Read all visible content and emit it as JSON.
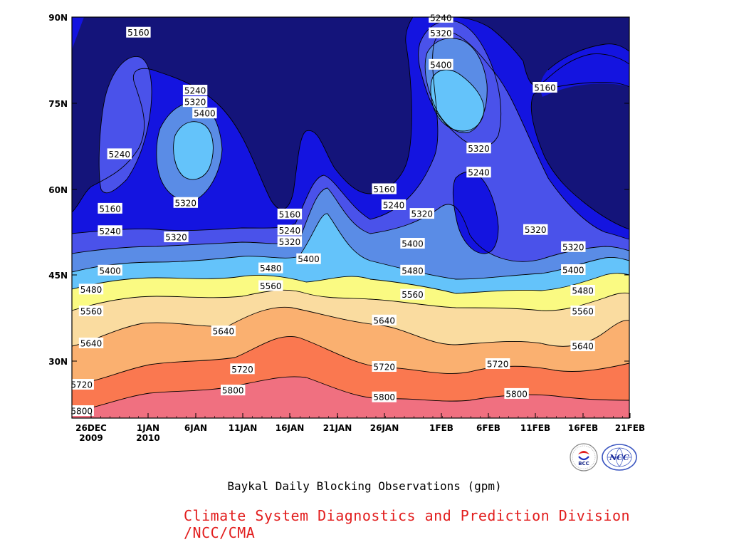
{
  "title": "Baykal Daily Blocking Observations (gpm)",
  "credit": "Climate System Diagnostics and Prediction Division /NCC/CMA",
  "logos": {
    "left_text": "BCC",
    "right_text": "NCC"
  },
  "colors": {
    "lt5160": "#14147a",
    "b5160_5240": "#1414e0",
    "b5240_5320": "#4a52ea",
    "b5320_5400": "#5a8ce6",
    "b5400_5480": "#64c3fa",
    "b5480_5560": "#fafa82",
    "b5560_5640": "#fadca0",
    "b5640_5720": "#fab070",
    "b5720_5800": "#fa7850",
    "gt5800": "#f07080"
  },
  "chart_data": {
    "type": "contour",
    "title": "Baykal Daily Blocking Observations (gpm)",
    "x_ticks": [
      "26DEC",
      "1JAN",
      "6JAN",
      "11JAN",
      "16JAN",
      "21JAN",
      "26JAN",
      "1FEB",
      "6FEB",
      "11FEB",
      "16FEB",
      "21FEB"
    ],
    "x_tick_sublabels": [
      "2009",
      "2010",
      "",
      "",
      "",
      "",
      "",
      "",
      "",
      "",
      "",
      ""
    ],
    "y_ticks": [
      "90N",
      "75N",
      "60N",
      "45N",
      "30N"
    ],
    "y_tick_values": [
      90,
      75,
      60,
      45,
      30
    ],
    "x_range": [
      "2009-12-26",
      "2010-02-21"
    ],
    "y_range": [
      20,
      90
    ],
    "contour_levels": [
      5160,
      5240,
      5320,
      5400,
      5480,
      5560,
      5640,
      5720,
      5800
    ],
    "contour_labels": [
      {
        "text": "5160",
        "date": "2009-12-31",
        "lat": 87.3
      },
      {
        "text": "5240",
        "date": "2010-01-06",
        "lat": 77.2
      },
      {
        "text": "5320",
        "date": "2010-01-06",
        "lat": 75.2
      },
      {
        "text": "5400",
        "date": "2010-01-07",
        "lat": 73.2
      },
      {
        "text": "5240",
        "date": "2009-12-29",
        "lat": 66.1
      },
      {
        "text": "5320",
        "date": "2010-01-05",
        "lat": 57.6
      },
      {
        "text": "5160",
        "date": "2009-12-28",
        "lat": 56.6
      },
      {
        "text": "5240",
        "date": "2009-12-28",
        "lat": 52.7
      },
      {
        "text": "5320",
        "date": "2010-01-04",
        "lat": 51.6
      },
      {
        "text": "5400",
        "date": "2009-12-28",
        "lat": 45.8
      },
      {
        "text": "5480",
        "date": "2009-12-26",
        "lat": 42.5
      },
      {
        "text": "5560",
        "date": "2009-12-26",
        "lat": 38.7
      },
      {
        "text": "5640",
        "date": "2009-12-26",
        "lat": 33.1
      },
      {
        "text": "5720",
        "date": "2009-12-25",
        "lat": 25.9
      },
      {
        "text": "5800",
        "date": "2009-12-25",
        "lat": 21.3
      },
      {
        "text": "5640",
        "date": "2010-01-09",
        "lat": 35.2
      },
      {
        "text": "5720",
        "date": "2010-01-11",
        "lat": 28.6
      },
      {
        "text": "5800",
        "date": "2010-01-10",
        "lat": 24.9
      },
      {
        "text": "5160",
        "date": "2010-01-16",
        "lat": 55.6
      },
      {
        "text": "5240",
        "date": "2010-01-16",
        "lat": 52.8
      },
      {
        "text": "5320",
        "date": "2010-01-16",
        "lat": 50.8
      },
      {
        "text": "5400",
        "date": "2010-01-18",
        "lat": 47.8
      },
      {
        "text": "5480",
        "date": "2010-01-14",
        "lat": 46.2
      },
      {
        "text": "5560",
        "date": "2010-01-14",
        "lat": 43.1
      },
      {
        "text": "5160",
        "date": "2010-01-26",
        "lat": 60.0
      },
      {
        "text": "5240",
        "date": "2010-01-27",
        "lat": 57.2
      },
      {
        "text": "5320",
        "date": "2010-01-30",
        "lat": 55.7
      },
      {
        "text": "5400",
        "date": "2010-01-29",
        "lat": 50.5
      },
      {
        "text": "5480",
        "date": "2010-01-29",
        "lat": 45.8
      },
      {
        "text": "5560",
        "date": "2010-01-29",
        "lat": 41.6
      },
      {
        "text": "5640",
        "date": "2010-01-26",
        "lat": 37.1
      },
      {
        "text": "5720",
        "date": "2010-01-26",
        "lat": 29.0
      },
      {
        "text": "5800",
        "date": "2010-01-26",
        "lat": 23.7
      },
      {
        "text": "5240",
        "date": "2010-02-01",
        "lat": 89.9
      },
      {
        "text": "5320",
        "date": "2010-02-01",
        "lat": 87.2
      },
      {
        "text": "5400",
        "date": "2010-02-01",
        "lat": 81.7
      },
      {
        "text": "5320",
        "date": "2010-02-05",
        "lat": 67.1
      },
      {
        "text": "5240",
        "date": "2010-02-05",
        "lat": 62.9
      },
      {
        "text": "5160",
        "date": "2010-02-12",
        "lat": 77.7
      },
      {
        "text": "5320",
        "date": "2010-02-11",
        "lat": 52.9
      },
      {
        "text": "5720",
        "date": "2010-02-07",
        "lat": 29.5
      },
      {
        "text": "5800",
        "date": "2010-02-09",
        "lat": 24.3
      },
      {
        "text": "5320",
        "date": "2010-02-15",
        "lat": 49.9
      },
      {
        "text": "5400",
        "date": "2010-02-15",
        "lat": 45.9
      },
      {
        "text": "5480",
        "date": "2010-02-16",
        "lat": 42.3
      },
      {
        "text": "5560",
        "date": "2010-02-16",
        "lat": 38.7
      },
      {
        "text": "5640",
        "date": "2010-02-16",
        "lat": 32.6
      }
    ]
  }
}
